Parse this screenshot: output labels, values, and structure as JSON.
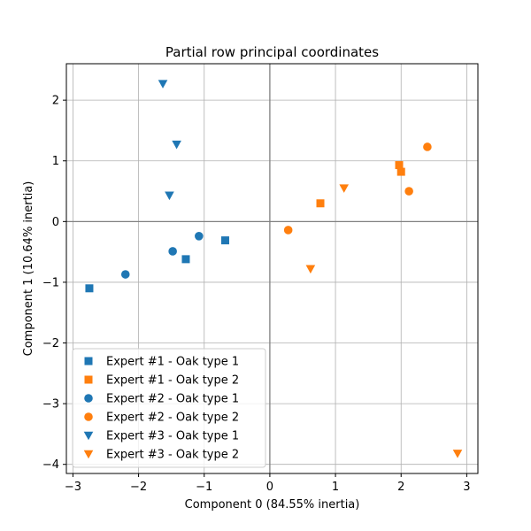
{
  "chart_data": {
    "type": "scatter",
    "title": "Partial row principal coordinates",
    "xlabel": "Component 0 (84.55% inertia)",
    "ylabel": "Component 1 (10.64% inertia)",
    "xlim": [
      -3.1,
      3.17
    ],
    "ylim": [
      -4.15,
      2.6
    ],
    "xticks": [
      -3,
      -2,
      -1,
      0,
      1,
      2,
      3
    ],
    "xtick_labels": [
      "−3",
      "−2",
      "−1",
      "0",
      "1",
      "2",
      "3"
    ],
    "yticks": [
      -4,
      -3,
      -2,
      -1,
      0,
      1,
      2
    ],
    "ytick_labels": [
      "−4",
      "−3",
      "−2",
      "−1",
      "0",
      "1",
      "2"
    ],
    "grid": true,
    "legend_position": "lower-left",
    "colors": {
      "oak1": "#1f77b4",
      "oak2": "#ff7f0e"
    },
    "series": [
      {
        "name": "Expert #1 - Oak type 1",
        "marker": "square",
        "color": "#1f77b4",
        "points": [
          [
            -2.75,
            -1.1
          ],
          [
            -1.28,
            -0.62
          ],
          [
            -0.68,
            -0.31
          ]
        ]
      },
      {
        "name": "Expert #1 - Oak type 2",
        "marker": "square",
        "color": "#ff7f0e",
        "points": [
          [
            0.77,
            0.3
          ],
          [
            1.97,
            0.93
          ],
          [
            2.0,
            0.82
          ]
        ]
      },
      {
        "name": "Expert #2 - Oak type 1",
        "marker": "circle",
        "color": "#1f77b4",
        "points": [
          [
            -2.2,
            -0.87
          ],
          [
            -1.48,
            -0.49
          ],
          [
            -1.08,
            -0.24
          ]
        ]
      },
      {
        "name": "Expert #2 - Oak type 2",
        "marker": "circle",
        "color": "#ff7f0e",
        "points": [
          [
            0.28,
            -0.14
          ],
          [
            2.12,
            0.5
          ],
          [
            2.4,
            1.23
          ]
        ]
      },
      {
        "name": "Expert #3 - Oak type 1",
        "marker": "triangle-down",
        "color": "#1f77b4",
        "points": [
          [
            -1.63,
            2.27
          ],
          [
            -1.42,
            1.27
          ],
          [
            -1.53,
            0.43
          ]
        ]
      },
      {
        "name": "Expert #3 - Oak type 2",
        "marker": "triangle-down",
        "color": "#ff7f0e",
        "points": [
          [
            0.62,
            -0.78
          ],
          [
            1.13,
            0.55
          ],
          [
            2.86,
            -3.82
          ]
        ]
      }
    ]
  }
}
